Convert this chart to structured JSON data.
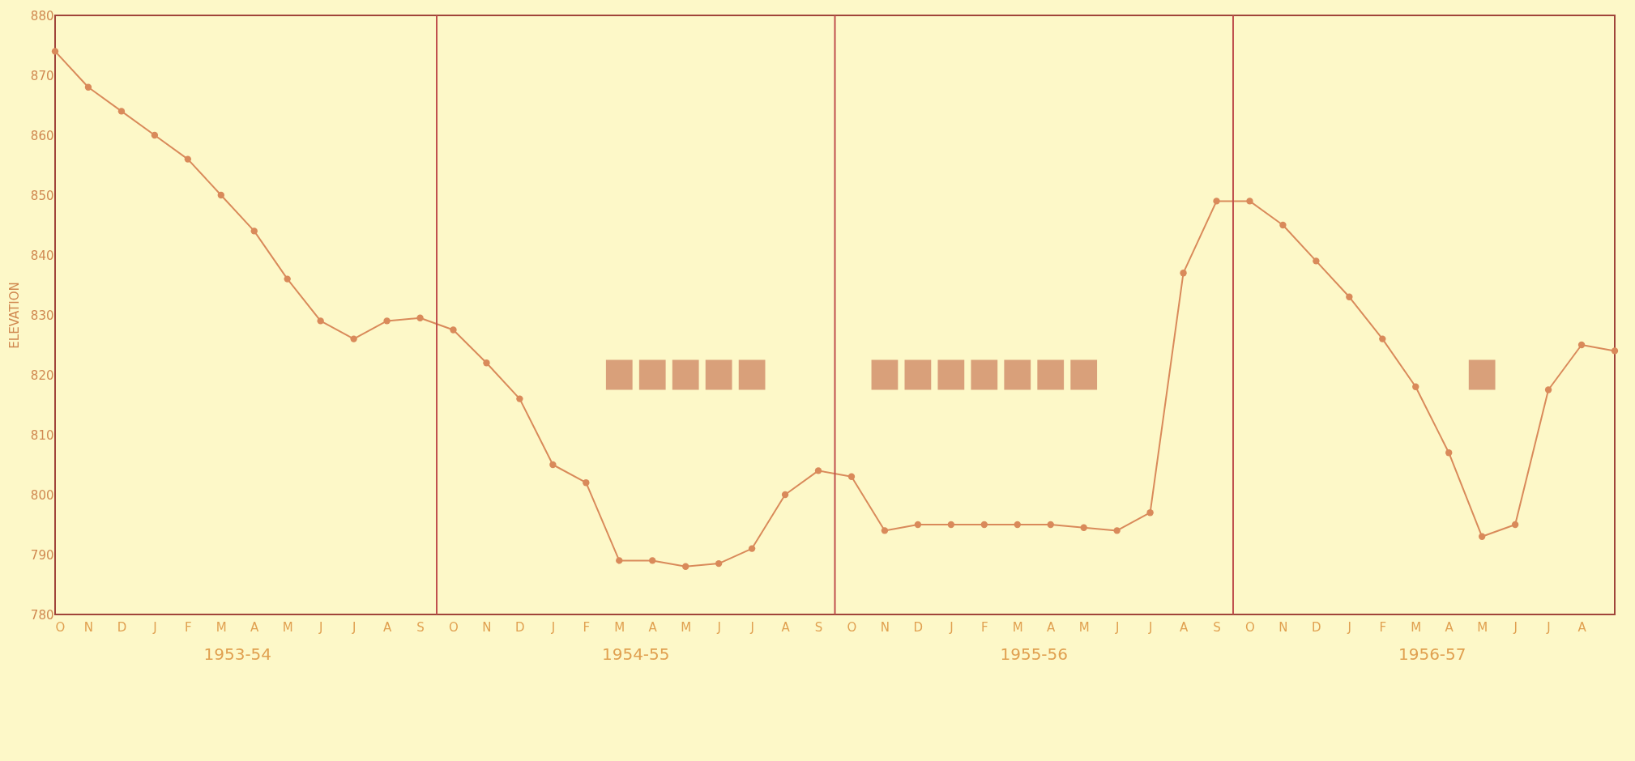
{
  "chart_data": {
    "type": "line",
    "ylabel": "ELEVATION",
    "categories": [
      "O",
      "N",
      "D",
      "J",
      "F",
      "M",
      "A",
      "M",
      "J",
      "J",
      "A",
      "S",
      "O",
      "N",
      "D",
      "J",
      "F",
      "M",
      "A",
      "M",
      "J",
      "J",
      "A",
      "S",
      "O",
      "N",
      "D",
      "J",
      "F",
      "M",
      "A",
      "M",
      "J",
      "J",
      "A",
      "S",
      "O",
      "N",
      "D",
      "J",
      "F",
      "M",
      "A",
      "M",
      "J",
      "J",
      "A",
      null
    ],
    "series": [
      {
        "color": "#d98a5a",
        "values": [
          874,
          868,
          864,
          860,
          856,
          850,
          844,
          836,
          829,
          826,
          829,
          829.5,
          827.5,
          822,
          816,
          805,
          802,
          789,
          789,
          788,
          788.5,
          791,
          800,
          804,
          803,
          794,
          795,
          795,
          795,
          795,
          795,
          794.5,
          794,
          797,
          837,
          849,
          849,
          845,
          839,
          833,
          826,
          818,
          807,
          793,
          795,
          817.5,
          825,
          824
        ]
      },
      {
        "type": "bar",
        "color": "#d9a07a",
        "base": [
          null,
          null,
          null,
          null,
          null,
          null,
          null,
          null,
          null,
          null,
          null,
          null,
          null,
          null,
          null,
          null,
          null,
          817.5,
          817.5,
          817.5,
          817.5,
          817.5,
          null,
          null,
          null,
          817.5,
          817.5,
          817.5,
          817.5,
          817.5,
          817.5,
          817.5,
          null,
          null,
          null,
          null,
          null,
          null,
          null,
          null,
          null,
          null,
          null,
          817.5,
          null,
          null,
          null,
          null
        ],
        "values": [
          null,
          null,
          null,
          null,
          null,
          null,
          null,
          null,
          null,
          null,
          null,
          null,
          null,
          null,
          null,
          null,
          null,
          5,
          5,
          5,
          5,
          5,
          null,
          null,
          null,
          5,
          5,
          5,
          5,
          5,
          5,
          5,
          null,
          null,
          null,
          null,
          null,
          null,
          null,
          null,
          null,
          null,
          null,
          5,
          null,
          null,
          null,
          null
        ]
      }
    ],
    "ylim": [
      780,
      880
    ],
    "yticks": [
      780,
      790,
      800,
      810,
      820,
      830,
      840,
      850,
      860,
      870,
      880
    ],
    "annotations": [
      "1953-54",
      "1954-55",
      "1955-56",
      "1956-57"
    ],
    "marker": "circle",
    "line_style": "solid",
    "grid": false,
    "legend": false
  }
}
